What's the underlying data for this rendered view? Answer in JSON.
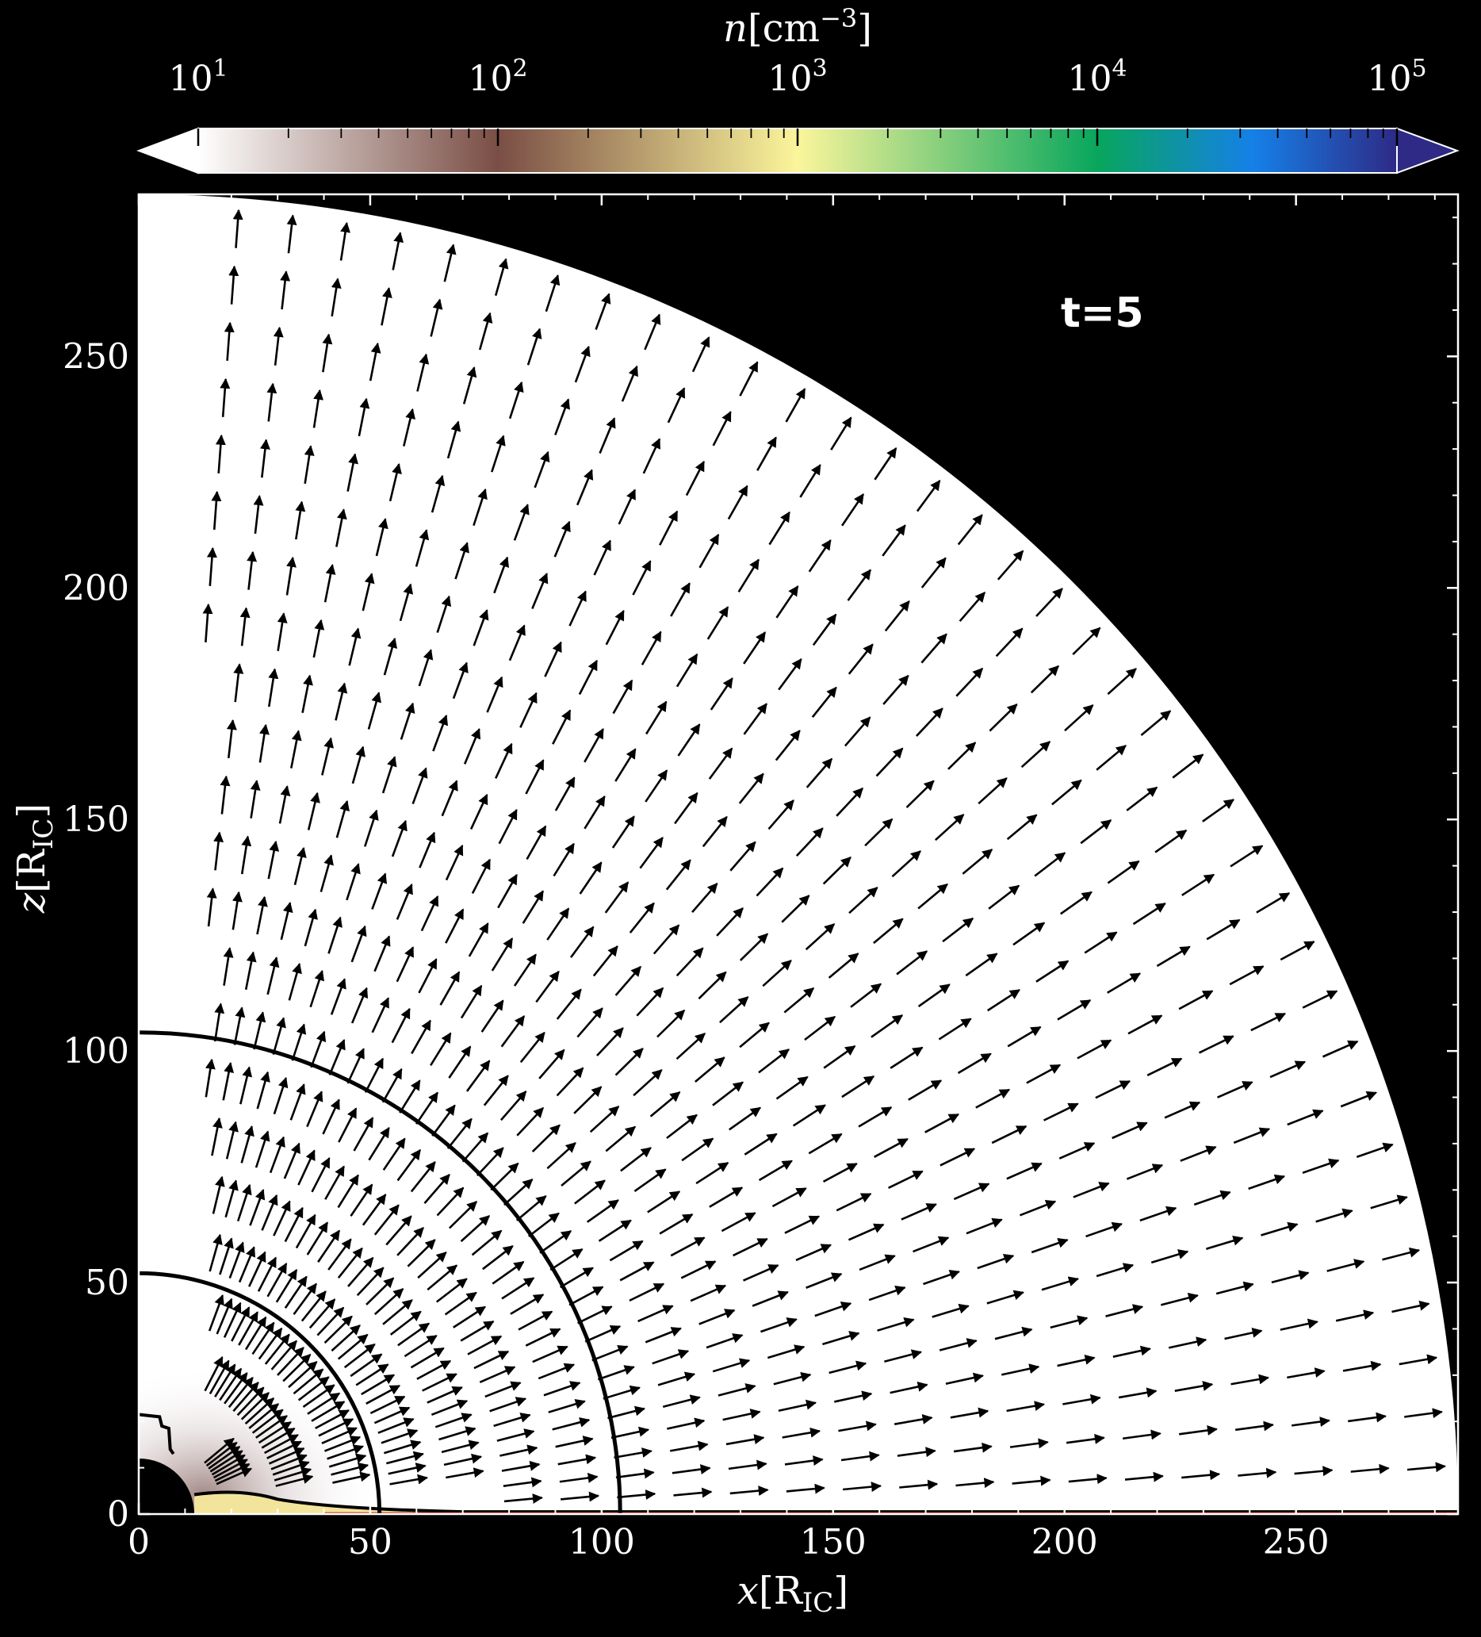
{
  "chart_data": {
    "type": "heatmap",
    "title": "",
    "annotation": "t=5",
    "xlabel": {
      "var": "x",
      "unit": "[R",
      "unit_sub": "IC",
      "unit_close": "]"
    },
    "ylabel": {
      "var": "z",
      "unit": "[R",
      "unit_sub": "IC",
      "unit_close": "]"
    },
    "xlim": [
      0,
      285
    ],
    "ylim": [
      0,
      285
    ],
    "x_ticks": [
      0,
      50,
      100,
      150,
      200,
      250
    ],
    "y_ticks": [
      0,
      50,
      100,
      150,
      200,
      250
    ],
    "x_tick_labels": [
      "0",
      "50",
      "100",
      "150",
      "200",
      "250"
    ],
    "y_tick_labels": [
      "0",
      "50",
      "100",
      "150",
      "200",
      "250"
    ],
    "domain_outer_radius": 285,
    "inner_hole_radius": 12,
    "colorbar": {
      "label_var": "n",
      "label_unit": "[cm",
      "label_exp": "−3",
      "label_close": "]",
      "scale": "log",
      "range": [
        10,
        100000
      ],
      "ticks": [
        {
          "base": "10",
          "exp": "1",
          "value": 10
        },
        {
          "base": "10",
          "exp": "2",
          "value": 100
        },
        {
          "base": "10",
          "exp": "3",
          "value": 1000
        },
        {
          "base": "10",
          "exp": "4",
          "value": 10000
        },
        {
          "base": "10",
          "exp": "5",
          "value": 100000
        }
      ],
      "colors": [
        "#ffffff",
        "#7a4e45",
        "#fbf59b",
        "#08a65c",
        "#1580e8",
        "#2e2a86"
      ],
      "extend": "both"
    },
    "contours": [
      {
        "radius": 52
      },
      {
        "radius": 104
      }
    ],
    "vector_field": {
      "description": "velocity arrows pointing radially outward with slight upward tilt near the equator",
      "radial_spacing": 12.2,
      "angular_steps": 36
    }
  }
}
